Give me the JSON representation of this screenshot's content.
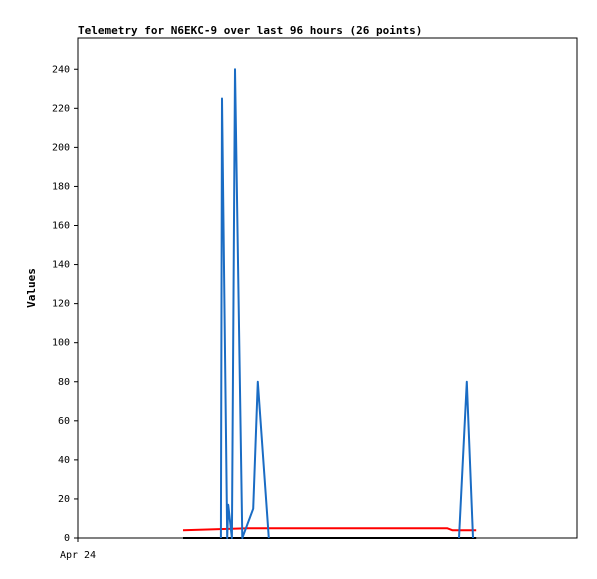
{
  "chart_data": {
    "type": "line",
    "title": "Telemetry for N6EKC-9 over last 96 hours (26 points)",
    "ylabel": "Values",
    "xlim": [
      0,
      96
    ],
    "xticks": [
      {
        "value": 0,
        "label": "Apr 24"
      }
    ],
    "ylim": [
      0,
      256
    ],
    "yticks": [
      0,
      20,
      40,
      60,
      80,
      100,
      120,
      140,
      160,
      180,
      200,
      220,
      240
    ],
    "series": [
      {
        "color": "#000000",
        "x": [
          20.2,
          76.6
        ],
        "values": [
          0,
          0
        ]
      },
      {
        "color": "#ff0000",
        "x": [
          20.2,
          32.7,
          71.0,
          72.0,
          76.6
        ],
        "values": [
          4,
          5,
          5,
          4,
          4
        ]
      },
      {
        "color": "#1a6cc4",
        "x": [
          27.5,
          27.7,
          28.7,
          28.9,
          29.6,
          30.2,
          31.6,
          33.7,
          34.6,
          36.7,
          null,
          73.3,
          74.8,
          76.0
        ],
        "values": [
          0,
          225,
          0,
          17,
          0,
          240,
          0,
          15,
          80,
          0,
          null,
          0,
          80,
          0
        ]
      }
    ]
  }
}
